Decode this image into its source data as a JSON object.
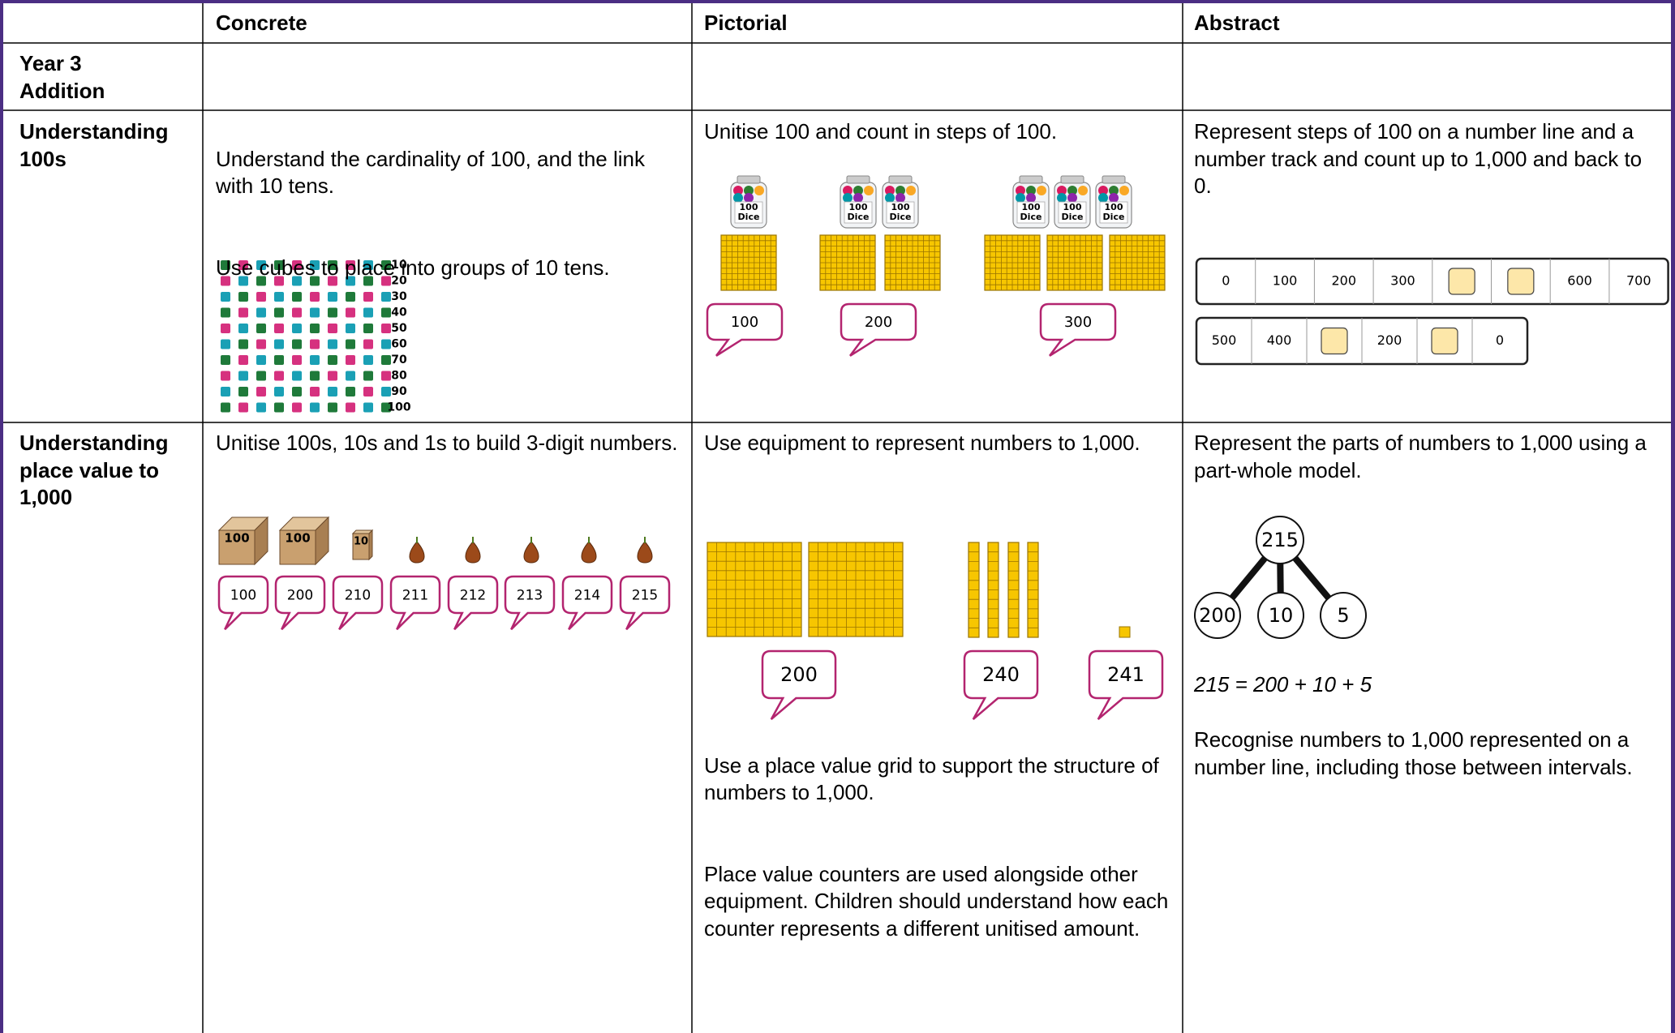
{
  "table": {
    "header": [
      "Concrete",
      "Pictorial",
      "Abstract"
    ],
    "rows": [
      {
        "label": "Year 3\nAddition"
      },
      {
        "label": "Understanding\n100s",
        "concrete": {
          "paragraphs": [
            "Understand the cardinality of 100, and the link with 10 tens.",
            "Use cubes to place into groups of 10 tens."
          ],
          "cube_labels": [
            10,
            20,
            30,
            40,
            50,
            60,
            70,
            80,
            90,
            100
          ]
        },
        "pictorial": {
          "text": "Unitise 100 and count in steps of 100.",
          "jar_label": [
            "100",
            "Dice"
          ],
          "bubbles": [
            100,
            200,
            300
          ]
        },
        "abstract": {
          "text": "Represent steps of 100 on a number line and a number track and count up to 1,000 and back to 0.",
          "track_up": [
            0,
            100,
            200,
            300,
            null,
            null,
            600,
            700
          ],
          "track_down": [
            500,
            400,
            null,
            200,
            null,
            0
          ]
        }
      },
      {
        "label": "Understanding place value to 1,000",
        "concrete": {
          "text": "Unitise 100s, 10s and 1s to build 3-digit numbers.",
          "block_labels": [
            100,
            100,
            10
          ],
          "bubbles": [
            100,
            200,
            210,
            211,
            212,
            213,
            214,
            215
          ]
        },
        "pictorial": {
          "text": "Use equipment to represent numbers to 1,000.",
          "bubbles": [
            200,
            240,
            241
          ],
          "paragraphs": [
            "Use a place value grid to support the structure of numbers to 1,000.",
            "Place value counters are used alongside other equipment. Children should understand how each counter represents a different unitised amount."
          ]
        },
        "abstract": {
          "text": "Represent the parts of numbers to 1,000 using a part-whole model.",
          "whole": 215,
          "parts": [
            200,
            10,
            5
          ],
          "equation": "215 = 200 + 10 + 5",
          "text2": "Recognise numbers to 1,000 represented on a number line, including those between intervals."
        }
      }
    ]
  }
}
